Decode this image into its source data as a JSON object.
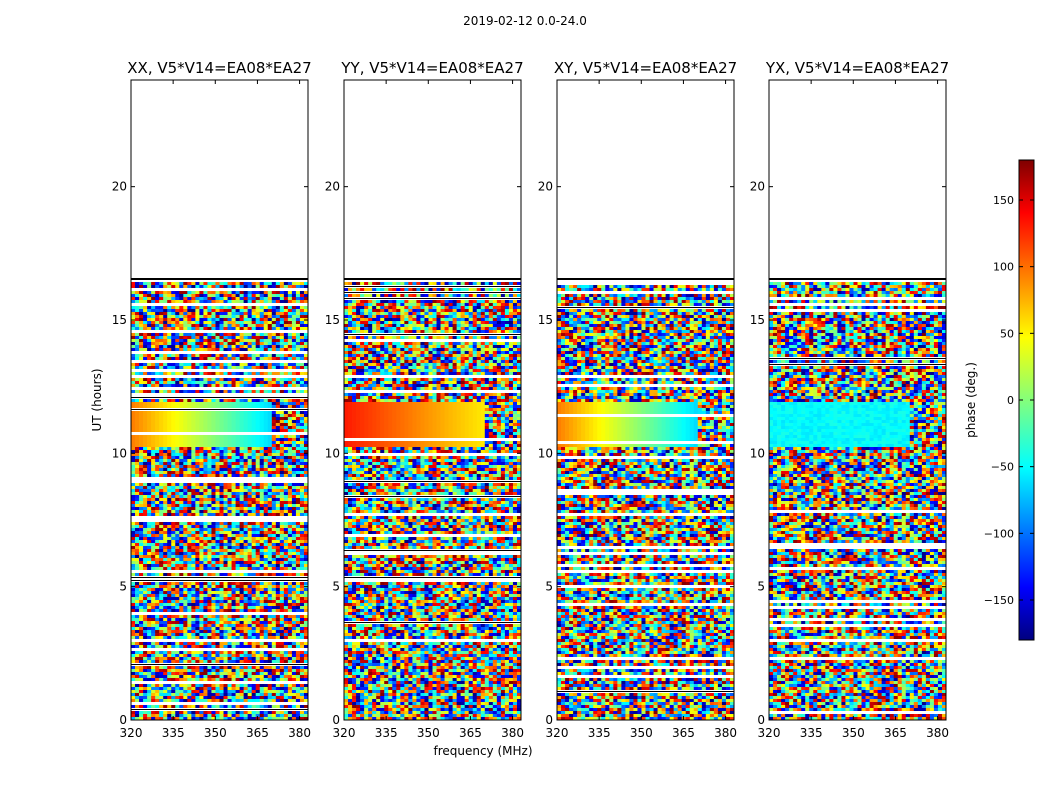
{
  "chart_data": {
    "type": "heatmap",
    "suptitle": "2019-02-12 0.0-24.0",
    "xlabel": "frequency (MHz)",
    "ylabel": "UT (hours)",
    "xticks": [
      320,
      335,
      350,
      365,
      380
    ],
    "yticks": [
      0,
      5,
      10,
      15,
      20
    ],
    "xlim": [
      320,
      383
    ],
    "ylim": [
      0,
      24
    ],
    "data_extent_hours": [
      0,
      16.5
    ],
    "colorbar": {
      "label": "phase (deg.)",
      "range": [
        -180,
        180
      ],
      "ticks": [
        -150,
        -100,
        -50,
        0,
        50,
        100,
        150
      ],
      "tick_labels": [
        "−150",
        "−100",
        "−50",
        "0",
        "50",
        "100",
        "150"
      ],
      "colormap": "jet"
    },
    "panels": [
      {
        "title": "XX, V5*V14=EA08*EA27"
      },
      {
        "title": "YY, V5*V14=EA08*EA27"
      },
      {
        "title": "XY, V5*V14=EA08*EA27"
      },
      {
        "title": "YX, V5*V14=EA08*EA27"
      }
    ],
    "colors": {
      "jet_stops": [
        "#00007f",
        "#0000ff",
        "#00ffff",
        "#ffff00",
        "#ff0000",
        "#7f0000"
      ]
    }
  }
}
